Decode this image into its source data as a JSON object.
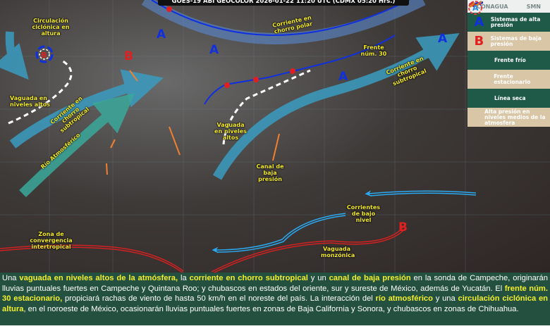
{
  "header": {
    "title": "GOES-19 ABI GEOCOLOR 2026-01-22 11:20 UTC (CDMX 05:20 Hrs.)"
  },
  "logos": {
    "conagua": "CONAGUA",
    "smn": "SMN"
  },
  "legend": [
    {
      "icon": "high-pressure-A",
      "label": "Sistemas de alta presión",
      "color": "#1030e0"
    },
    {
      "icon": "low-pressure-B",
      "label": "Sistemas de baja presión",
      "color": "#e02020"
    },
    {
      "icon": "cold-front",
      "label": "Frente frío",
      "color": "#1030e0"
    },
    {
      "icon": "stationary-front",
      "label": "Frente estacionario",
      "color": "#e02020"
    },
    {
      "icon": "dry-line",
      "label": "Línea seca",
      "color": "#d08020"
    },
    {
      "icon": "mid-level-high",
      "label": "Alta presión en niveles medios de la atmosfera",
      "color": "#e04040"
    }
  ],
  "map": {
    "high_letter": "A",
    "low_letter": "B",
    "labels": {
      "circulacion": "Circulación ciclónica en altura",
      "vaguada_w": "Vaguada en niveles altos",
      "jet_sub_w": "Corriente en chorro subtropical",
      "rio": "Río Atmosférico",
      "jet_polar": "Corriente en chorro polar",
      "frente": "Frente núm. 30",
      "jet_sub_e": "Corriente en chorro subtropical",
      "vaguada_c": "Vaguada en niveles altos",
      "canal": "Canal de baja presión",
      "corrientes": "Corrientes de bajo nivel",
      "zcit": "Zona de convergencia intertropical",
      "monzonica": "Vaguada monzónica"
    }
  },
  "description": [
    {
      "t": "Una ",
      "h": false
    },
    {
      "t": "vaguada en niveles altos de la atmósfera,",
      "h": true
    },
    {
      "t": " la ",
      "h": false
    },
    {
      "t": "corriente en chorro subtropical",
      "h": true
    },
    {
      "t": " y un ",
      "h": false
    },
    {
      "t": "canal de baja presión",
      "h": true
    },
    {
      "t": " en la sonda de Campeche, originarán lluvias puntuales fuertes en Campeche y Quintana Roo; y chubascos en estados del oriente, sur y sureste de México, además de Yucatán. El ",
      "h": false
    },
    {
      "t": "frente núm. 30 estacionario,",
      "h": true
    },
    {
      "t": " propiciará rachas de viento de hasta 50 km/h en el noreste del país. La interacción del ",
      "h": false
    },
    {
      "t": "río atmosférico",
      "h": true
    },
    {
      "t": " y una ",
      "h": false
    },
    {
      "t": "circulación ciclónica en altura",
      "h": true
    },
    {
      "t": ", en el noroeste de México, ocasionarán lluvias puntuales fuertes en zonas de Baja California y Sonora, y chubascos en zonas de Chihuahua.",
      "h": false
    }
  ]
}
